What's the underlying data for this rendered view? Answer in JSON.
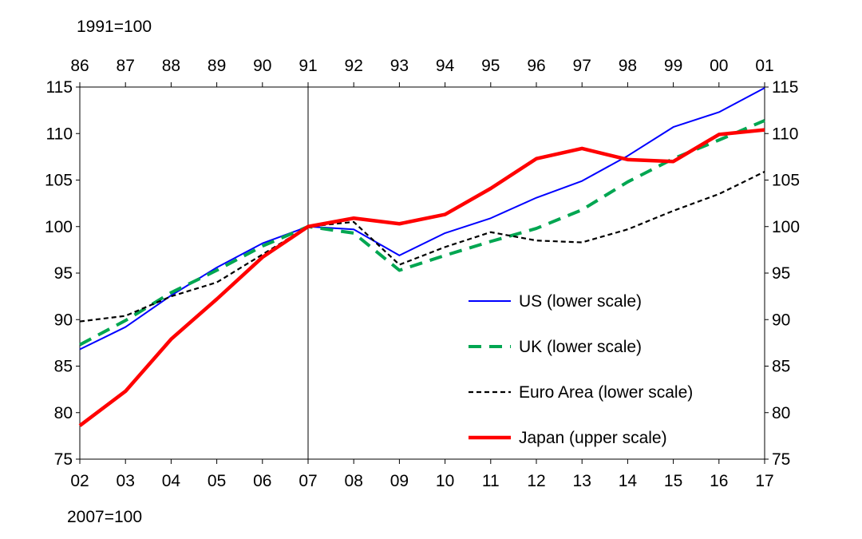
{
  "chart_data": {
    "type": "line",
    "top_axis_label": "1991=100",
    "bottom_axis_label": "2007=100",
    "x_bottom": [
      "02",
      "03",
      "04",
      "05",
      "06",
      "07",
      "08",
      "09",
      "10",
      "11",
      "12",
      "13",
      "14",
      "15",
      "16",
      "17"
    ],
    "x_top": [
      "86",
      "87",
      "88",
      "89",
      "90",
      "91",
      "92",
      "93",
      "94",
      "95",
      "96",
      "97",
      "98",
      "99",
      "00",
      "01"
    ],
    "ylim": [
      75,
      115
    ],
    "yticks": [
      "75",
      "80",
      "85",
      "90",
      "95",
      "100",
      "105",
      "110",
      "115"
    ],
    "reference_line_at": "07",
    "series": [
      {
        "name": "US (lower scale)",
        "style": "solid",
        "color": "#0000ff",
        "values": [
          86.8,
          89.2,
          92.6,
          95.6,
          98.2,
          100.0,
          99.7,
          96.9,
          99.3,
          100.9,
          103.1,
          104.9,
          107.6,
          110.7,
          112.3,
          114.9
        ]
      },
      {
        "name": "UK (lower scale)",
        "style": "dashed",
        "color": "#00a651",
        "values": [
          87.3,
          89.9,
          92.9,
          95.3,
          97.9,
          100.0,
          99.3,
          95.3,
          96.9,
          98.4,
          99.8,
          101.8,
          104.8,
          107.3,
          109.3,
          111.4
        ]
      },
      {
        "name": "Euro Area (lower scale)",
        "style": "dotted",
        "color": "#000000",
        "values": [
          89.8,
          90.4,
          92.5,
          94.0,
          97.0,
          100.0,
          100.5,
          95.9,
          97.8,
          99.4,
          98.5,
          98.3,
          99.7,
          101.7,
          103.5,
          105.9
        ]
      },
      {
        "name": "Japan (upper scale)",
        "style": "thick",
        "color": "#ff0000",
        "values": [
          78.6,
          82.3,
          87.9,
          92.2,
          96.7,
          100.0,
          100.9,
          100.3,
          101.3,
          104.1,
          107.3,
          108.4,
          107.2,
          107.0,
          109.9,
          110.4
        ]
      }
    ]
  }
}
